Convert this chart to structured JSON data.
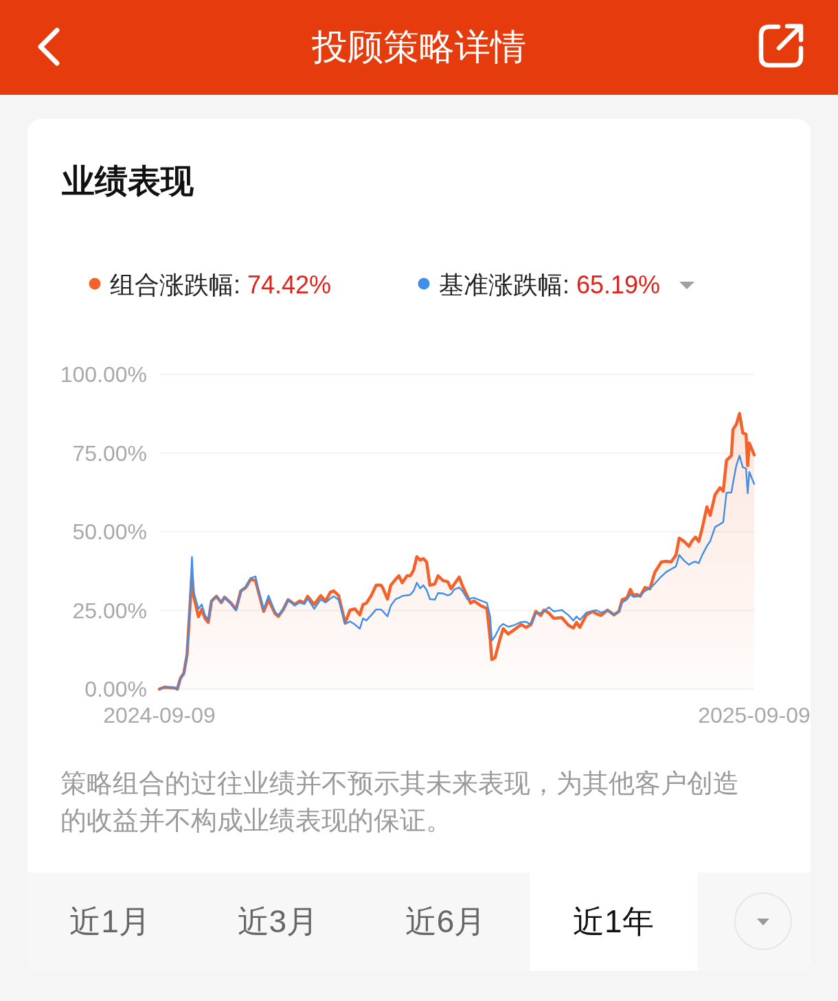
{
  "chart_data": {
    "type": "line",
    "title": "业绩表现",
    "x": [
      "2024-09-09",
      "2024-09-12",
      "2024-09-18",
      "2024-09-20",
      "2024-09-22",
      "2024-09-24",
      "2024-09-26",
      "2024-09-27",
      "2024-09-29",
      "2024-09-30",
      "2024-10-03",
      "2024-10-05",
      "2024-10-07",
      "2024-10-09",
      "2024-10-11",
      "2024-10-14",
      "2024-10-17",
      "2024-10-19",
      "2024-10-23",
      "2024-10-26",
      "2024-10-29",
      "2024-11-01",
      "2024-11-04",
      "2024-11-07",
      "2024-11-09",
      "2024-11-12",
      "2024-11-15",
      "2024-11-19",
      "2024-11-21",
      "2024-11-24",
      "2024-11-27",
      "2024-12-01",
      "2024-12-04",
      "2024-12-07",
      "2024-12-09",
      "2024-12-13",
      "2024-12-17",
      "2024-12-20",
      "2024-12-23",
      "2024-12-25",
      "2024-12-28",
      "2025-01-01",
      "2025-01-04",
      "2025-01-07",
      "2025-01-10",
      "2025-01-12",
      "2025-01-14",
      "2025-01-17",
      "2025-01-20",
      "2025-01-23",
      "2025-01-24",
      "2025-01-27",
      "2025-01-29",
      "2025-02-01",
      "2025-02-03",
      "2025-02-05",
      "2025-02-08",
      "2025-02-10",
      "2025-02-12",
      "2025-02-14",
      "2025-02-16",
      "2025-02-18",
      "2025-02-20",
      "2025-02-22",
      "2025-02-25",
      "2025-02-27",
      "2025-03-02",
      "2025-03-05",
      "2025-03-07",
      "2025-03-09",
      "2025-03-12",
      "2025-03-14",
      "2025-03-17",
      "2025-03-19",
      "2025-03-21",
      "2025-03-25",
      "2025-03-29",
      "2025-03-31",
      "2025-04-01",
      "2025-04-03",
      "2025-04-06",
      "2025-04-08",
      "2025-04-11",
      "2025-04-14",
      "2025-04-19",
      "2025-04-22",
      "2025-04-25",
      "2025-04-28",
      "2025-05-01",
      "2025-05-03",
      "2025-05-06",
      "2025-05-09",
      "2025-05-14",
      "2025-05-18",
      "2025-05-21",
      "2025-05-23",
      "2025-05-25",
      "2025-05-29",
      "2025-06-02",
      "2025-06-04",
      "2025-06-07",
      "2025-06-11",
      "2025-06-15",
      "2025-06-18",
      "2025-06-20",
      "2025-06-23",
      "2025-06-25",
      "2025-06-27",
      "2025-06-29",
      "2025-07-01",
      "2025-07-04",
      "2025-07-07",
      "2025-07-10",
      "2025-07-14",
      "2025-07-17",
      "2025-07-20",
      "2025-07-23",
      "2025-07-25",
      "2025-07-28",
      "2025-07-31",
      "2025-08-02",
      "2025-08-04",
      "2025-08-06",
      "2025-08-08",
      "2025-08-11",
      "2025-08-13",
      "2025-08-16",
      "2025-08-19",
      "2025-08-21",
      "2025-08-23",
      "2025-08-26",
      "2025-08-27",
      "2025-08-29",
      "2025-08-31",
      "2025-09-02",
      "2025-09-04",
      "2025-09-05",
      "2025-09-06",
      "2025-09-09"
    ],
    "series": [
      {
        "name": "组合涨跌幅: 74.42%",
        "type": "area",
        "color": "#f2622a",
        "values": [
          0,
          0.6,
          0.4,
          0,
          3.5,
          5,
          11,
          19.6,
          36.7,
          29.7,
          23,
          25.3,
          22.5,
          21.2,
          28,
          29.5,
          27.5,
          29.2,
          27.3,
          25.3,
          31.2,
          32.3,
          34.9,
          34.5,
          30.6,
          24.7,
          28.4,
          24,
          23.1,
          25.3,
          28.4,
          26.9,
          28,
          27.5,
          29.5,
          26.9,
          29.7,
          28,
          30.8,
          31.2,
          29.7,
          21,
          25.1,
          25.5,
          23.6,
          26.9,
          27.3,
          29.7,
          33,
          33,
          32.3,
          28.6,
          33,
          34.9,
          36,
          33.8,
          36,
          36,
          37.8,
          42.1,
          41,
          41.5,
          40.4,
          33,
          33.4,
          36,
          34.5,
          34.1,
          31.9,
          33.4,
          35.6,
          32.8,
          29.5,
          27.3,
          28,
          26.6,
          25.6,
          15.9,
          9.4,
          10,
          15.9,
          19.2,
          17.5,
          18.6,
          20.5,
          19.6,
          20.5,
          24.7,
          23.4,
          25.1,
          24.2,
          22.5,
          22.7,
          20.3,
          19.4,
          21.2,
          19.6,
          23.6,
          24.7,
          24,
          23.4,
          25.1,
          23.6,
          24.7,
          28.4,
          29,
          31.7,
          29.7,
          30.1,
          29.5,
          32.3,
          31.9,
          37.1,
          40.4,
          40.6,
          40.4,
          42.6,
          48,
          46.9,
          45.4,
          47.2,
          48.3,
          46.9,
          50.9,
          57.9,
          55.2,
          61.8,
          64,
          62.9,
          72.7,
          74.2,
          82.5,
          84.1,
          87.6,
          81.4,
          81,
          71,
          78.2,
          74.42
        ]
      },
      {
        "name": "基准涨跌幅: 65.19%",
        "color": "#3f8ee8",
        "values": [
          0,
          0.6,
          0.4,
          0,
          3.5,
          5,
          11,
          19.6,
          42,
          31,
          25.5,
          26.9,
          23.5,
          22,
          28,
          29.5,
          27.5,
          29.2,
          27,
          25,
          31,
          32.5,
          35.3,
          35.8,
          31,
          25.3,
          29.7,
          24.5,
          23.5,
          25.3,
          28.4,
          26.5,
          27.5,
          27,
          28.8,
          25.5,
          28.5,
          27.5,
          28.8,
          29.5,
          28.4,
          20.7,
          21.5,
          20.5,
          19.2,
          22.5,
          21.8,
          23.5,
          25.3,
          25.3,
          24.8,
          23.1,
          26.5,
          28.6,
          29,
          29.6,
          29.8,
          30,
          31.2,
          33.8,
          32,
          33,
          31.5,
          28.6,
          28.4,
          30.5,
          30.4,
          29.8,
          30.2,
          31.7,
          32.3,
          31.2,
          28.6,
          28.8,
          29,
          28.2,
          27.4,
          23,
          15.4,
          16.8,
          19.9,
          20.7,
          19.8,
          20.2,
          21.3,
          21.4,
          20.5,
          24,
          24.2,
          24.8,
          26,
          24.7,
          25.1,
          23.5,
          21.8,
          23.1,
          22,
          24.3,
          24.8,
          25.1,
          24.3,
          25,
          23.6,
          24.7,
          27.5,
          28.5,
          30.1,
          29.3,
          29.4,
          29.7,
          31.2,
          32,
          33.5,
          35.8,
          37.2,
          38.1,
          39,
          42.6,
          40.8,
          39.5,
          40.2,
          40.5,
          40,
          42.5,
          45.5,
          47,
          51.5,
          52.4,
          53.1,
          62.4,
          62.5,
          65.5,
          71,
          74.2,
          70.5,
          70.1,
          62.2,
          69,
          65.19
        ]
      }
    ],
    "xlim": [
      "2024-09-09",
      "2025-09-09"
    ],
    "xticks": [
      "2024-09-09",
      "2025-09-09"
    ],
    "ylim": [
      0,
      100
    ],
    "yticks": [
      {
        "value": 0,
        "label": "0.00%"
      },
      {
        "value": 25,
        "label": "25.00%"
      },
      {
        "value": 50,
        "label": "50.00%"
      },
      {
        "value": 75,
        "label": "75.00%"
      },
      {
        "value": 100,
        "label": "100.00%"
      }
    ],
    "grid": "y",
    "legend": "top",
    "annotations": [
      "投顾策略详情",
      "策略组合的过往业绩并不预示其未来表现，为其他客户创造的收益并不构成业绩表现的保证。",
      "近1月",
      "近3月",
      "近6月",
      "近1年"
    ]
  }
}
